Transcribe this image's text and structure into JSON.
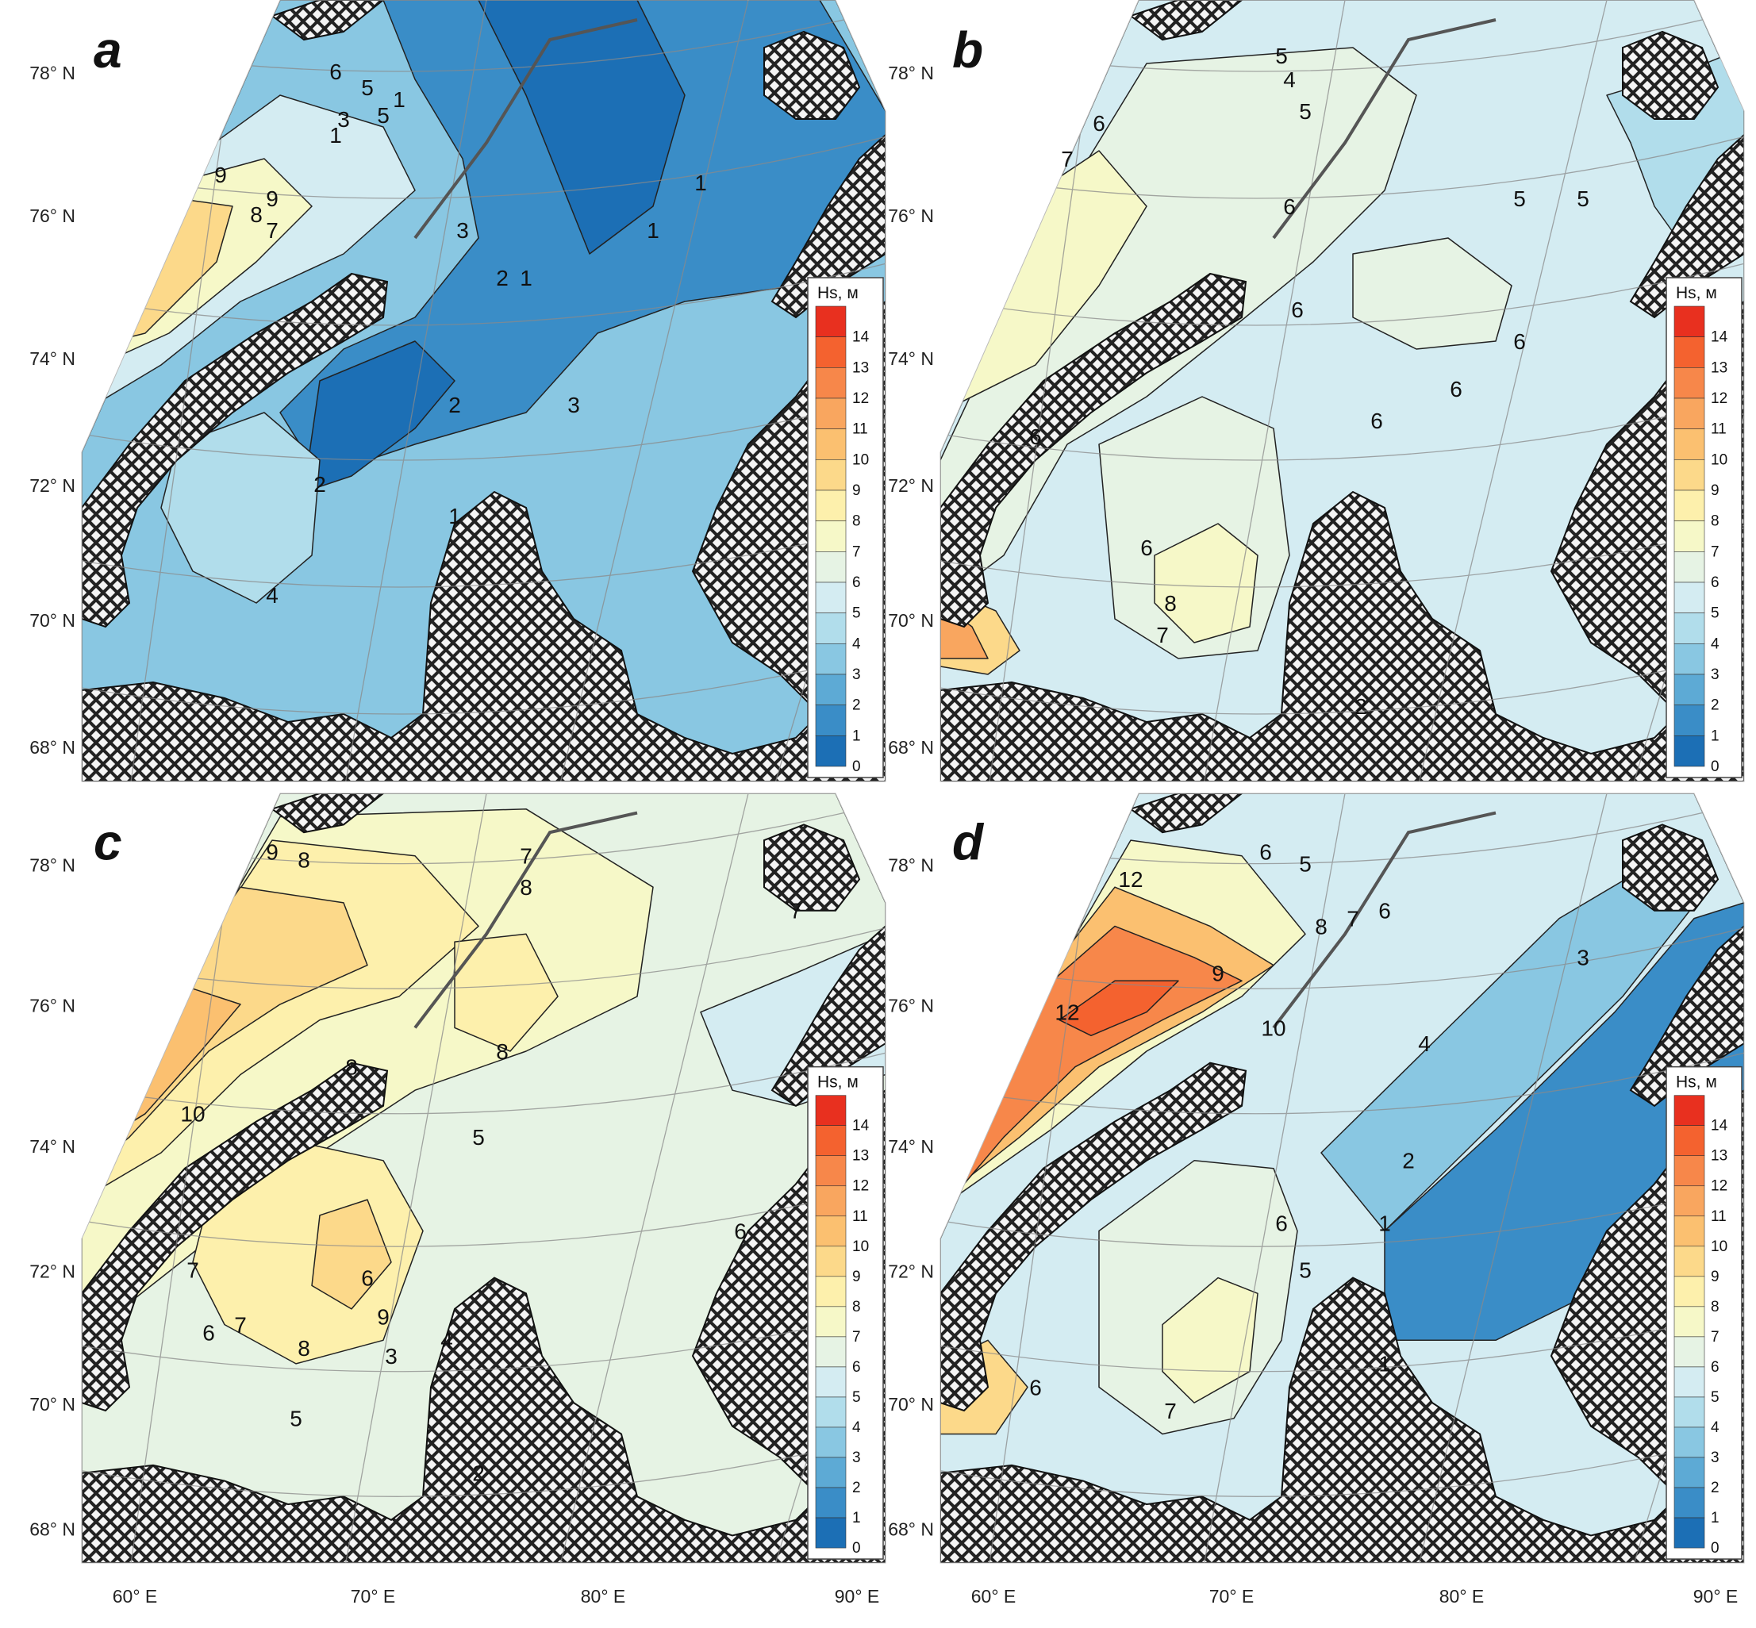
{
  "figure": {
    "latitude_labels": [
      "78° N",
      "76° N",
      "74° N",
      "72° N",
      "70° N",
      "68° N"
    ],
    "longitude_labels": [
      "60° E",
      "70° E",
      "80° E",
      "90° E"
    ]
  },
  "panels": [
    {
      "label": "a",
      "contour_labels": [
        "1",
        "1",
        "1",
        "1",
        "1",
        "1",
        "2",
        "2",
        "2",
        "3",
        "3",
        "3",
        "4",
        "5",
        "5",
        "6",
        "7",
        "8",
        "9",
        "9"
      ]
    },
    {
      "label": "b",
      "contour_labels": [
        "4",
        "5",
        "5",
        "5",
        "5",
        "6",
        "6",
        "6",
        "6",
        "6",
        "6",
        "6",
        "6",
        "7",
        "7",
        "8",
        "2"
      ]
    },
    {
      "label": "c",
      "contour_labels": [
        "9",
        "8",
        "7",
        "8",
        "7",
        "8",
        "10",
        "8",
        "7",
        "6",
        "9",
        "8",
        "7",
        "6",
        "5",
        "6",
        "3",
        "4",
        "5",
        "2"
      ]
    },
    {
      "label": "d",
      "contour_labels": [
        "12",
        "12",
        "10",
        "9",
        "8",
        "7",
        "6",
        "6",
        "5",
        "4",
        "3",
        "2",
        "1",
        "6",
        "5",
        "6",
        "7",
        "1"
      ]
    }
  ],
  "legend": {
    "title": "Hs, м",
    "ticks": [
      "14",
      "13",
      "12",
      "11",
      "10",
      "9",
      "8",
      "7",
      "6",
      "5",
      "4",
      "3",
      "2",
      "1",
      "0"
    ],
    "colors": [
      "#e8301f",
      "#f4622f",
      "#f7874a",
      "#f9a65f",
      "#fbc070",
      "#fcd98a",
      "#fdf0ac",
      "#f6f8c8",
      "#e6f3e4",
      "#d4ecf2",
      "#b1ddeb",
      "#89c7e2",
      "#5daad5",
      "#3a8dc7",
      "#1c6fb5"
    ]
  }
}
